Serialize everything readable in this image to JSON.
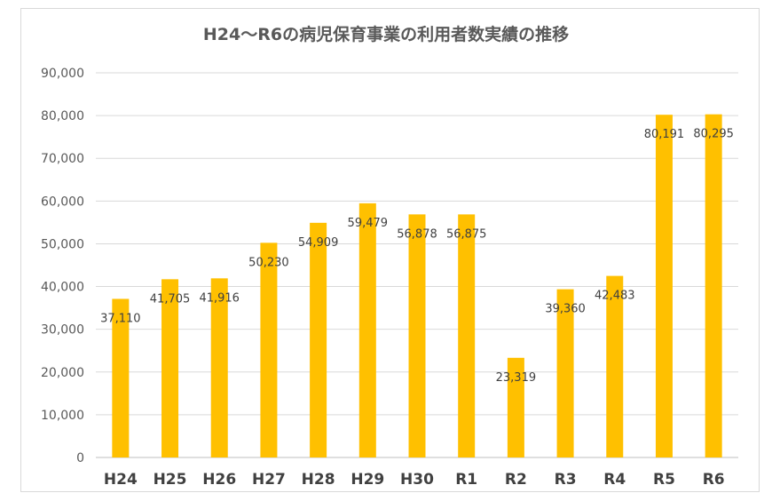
{
  "chart_data": {
    "type": "bar",
    "title": "H24～R6の病児保育事業の利用者数実績の推移",
    "categories": [
      "H24",
      "H25",
      "H26",
      "H27",
      "H28",
      "H29",
      "H30",
      "R1",
      "R2",
      "R3",
      "R4",
      "R5",
      "R6"
    ],
    "values": [
      37110,
      41705,
      41916,
      50230,
      54909,
      59479,
      56878,
      56875,
      23319,
      39360,
      42483,
      80191,
      80295
    ],
    "data_labels": [
      "37,110",
      "41,705",
      "41,916",
      "50,230",
      "54,909",
      "59,479",
      "56,878",
      "56,875",
      "23,319",
      "39,360",
      "42,483",
      "80,191",
      "80,295"
    ],
    "yticks": [
      "0",
      "10,000",
      "20,000",
      "30,000",
      "40,000",
      "50,000",
      "60,000",
      "70,000",
      "80,000",
      "90,000"
    ],
    "ylim": [
      0,
      90000
    ],
    "grid": true,
    "bar_color": "#FFC000",
    "grid_color": "#d9d9d9",
    "axis_color": "#bfbfbf"
  }
}
